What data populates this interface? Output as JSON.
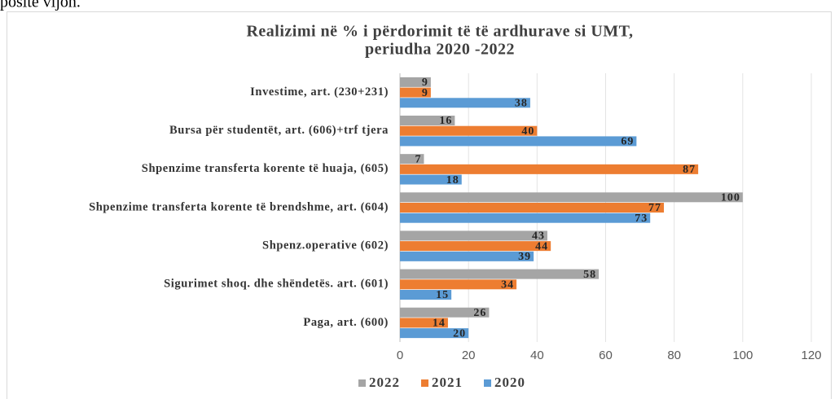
{
  "page_text": "posite vijon.",
  "chart_data": {
    "type": "barh",
    "title": [
      "Realizimi në % i përdorimit të të ardhurave si UMT,",
      "periudha 2020 -2022"
    ],
    "categories": [
      "Investime, art. (230+231)",
      "Bursa për studentët, art. (606)+trf tjera",
      "Shpenzime transferta korente të huaja, (605)",
      "Shpenzime transferta korente të brendshme, art. (604)",
      "Shpenz.operative (602)",
      "Sigurimet shoq. dhe shëndetës. art. (601)",
      "Paga, art. (600)"
    ],
    "series": [
      {
        "name": "2022",
        "color": "#a5a5a5",
        "values": [
          9,
          16,
          7,
          100,
          43,
          58,
          26
        ]
      },
      {
        "name": "2021",
        "color": "#ed7d31",
        "values": [
          9,
          40,
          87,
          77,
          44,
          34,
          14
        ]
      },
      {
        "name": "2020",
        "color": "#5b9bd5",
        "values": [
          38,
          69,
          18,
          73,
          39,
          15,
          20
        ]
      }
    ],
    "xlim": [
      0,
      120
    ],
    "xticks": [
      0,
      20,
      40,
      60,
      80,
      100,
      120
    ],
    "grid": true,
    "legend": "bottom"
  }
}
